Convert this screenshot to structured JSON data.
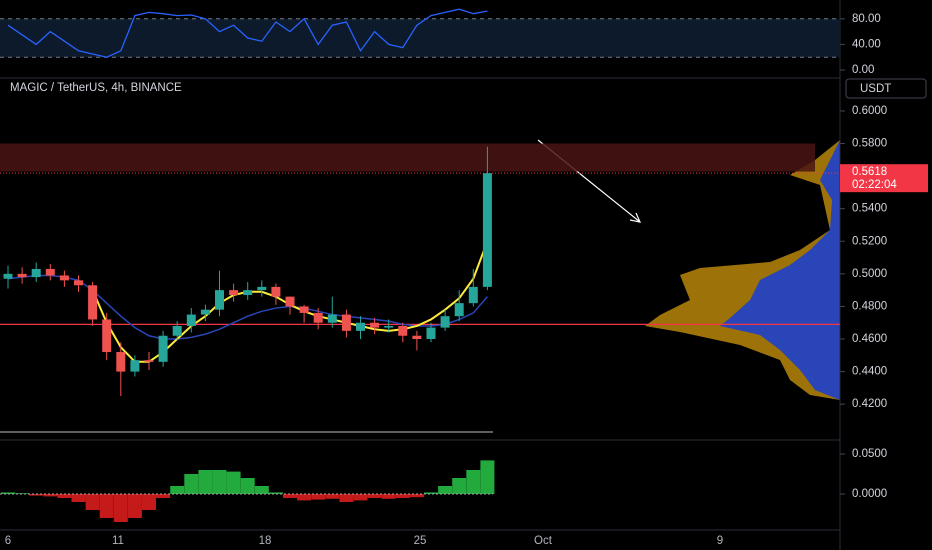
{
  "chart_data": [
    {
      "type": "candlestick",
      "title": "MAGIC / TetherUS, 4h, BINANCE",
      "unit": "USDT",
      "open": [
        0.497,
        0.5,
        0.498,
        0.503,
        0.499,
        0.496,
        0.493,
        0.472,
        0.452,
        0.44,
        0.447,
        0.446,
        0.462,
        0.468,
        0.475,
        0.478,
        0.49,
        0.487,
        0.49,
        0.492,
        0.486,
        0.48,
        0.476,
        0.47,
        0.475,
        0.465,
        0.47,
        0.467,
        0.468,
        0.462,
        0.46,
        0.467,
        0.474,
        0.482,
        0.492
      ],
      "high": [
        0.505,
        0.504,
        0.507,
        0.506,
        0.502,
        0.499,
        0.495,
        0.476,
        0.458,
        0.45,
        0.452,
        0.465,
        0.471,
        0.479,
        0.481,
        0.502,
        0.494,
        0.495,
        0.496,
        0.494,
        0.486,
        0.481,
        0.479,
        0.486,
        0.478,
        0.474,
        0.473,
        0.472,
        0.47,
        0.465,
        0.47,
        0.478,
        0.49,
        0.503,
        0.578
      ],
      "low": [
        0.491,
        0.494,
        0.495,
        0.496,
        0.492,
        0.489,
        0.468,
        0.447,
        0.425,
        0.437,
        0.441,
        0.443,
        0.459,
        0.464,
        0.471,
        0.474,
        0.483,
        0.484,
        0.486,
        0.481,
        0.475,
        0.47,
        0.466,
        0.467,
        0.461,
        0.46,
        0.463,
        0.464,
        0.458,
        0.453,
        0.458,
        0.465,
        0.471,
        0.48,
        0.49
      ],
      "close": [
        0.5,
        0.498,
        0.503,
        0.499,
        0.496,
        0.493,
        0.472,
        0.452,
        0.44,
        0.447,
        0.446,
        0.462,
        0.468,
        0.475,
        0.478,
        0.49,
        0.487,
        0.49,
        0.492,
        0.486,
        0.48,
        0.476,
        0.47,
        0.475,
        0.465,
        0.47,
        0.467,
        0.468,
        0.462,
        0.46,
        0.467,
        0.474,
        0.482,
        0.492,
        0.5618
      ],
      "series": [
        {
          "color": "#2a45b8",
          "values": [
            0.497,
            0.498,
            0.499,
            0.499,
            0.498,
            0.496,
            0.49,
            0.482,
            0.474,
            0.467,
            0.462,
            0.46,
            0.46,
            0.461,
            0.463,
            0.466,
            0.47,
            0.474,
            0.477,
            0.479,
            0.48,
            0.479,
            0.477,
            0.475,
            0.474,
            0.473,
            0.472,
            0.471,
            0.469,
            0.468,
            0.468,
            0.469,
            0.472,
            0.476,
            0.486
          ]
        },
        {
          "color": "#ffeb3b",
          "values": [
            null,
            null,
            null,
            null,
            null,
            null,
            0.49,
            0.47,
            0.455,
            0.446,
            0.446,
            0.452,
            0.46,
            0.468,
            0.474,
            0.482,
            0.487,
            0.489,
            0.489,
            0.486,
            0.481,
            0.477,
            0.474,
            0.472,
            0.47,
            0.468,
            0.466,
            0.465,
            0.466,
            0.468,
            0.472,
            0.478,
            0.485,
            0.497,
            0.52
          ]
        }
      ],
      "x_labels": [
        "6",
        "11",
        "18",
        "25",
        "Oct",
        "9"
      ],
      "ylim": [
        0.398,
        0.619
      ],
      "yticks": [
        {
          "value": 0.42,
          "label": "0.4200"
        },
        {
          "value": 0.44,
          "label": "0.4400"
        },
        {
          "value": 0.46,
          "label": "0.4600"
        },
        {
          "value": 0.48,
          "label": "0.4800"
        },
        {
          "value": 0.5,
          "label": "0.5000"
        },
        {
          "value": 0.52,
          "label": "0.5200"
        },
        {
          "value": 0.54,
          "label": "0.5400"
        },
        {
          "value": 0.58,
          "label": "0.5800"
        },
        {
          "value": 0.6,
          "label": "0.6000"
        }
      ],
      "current_price": {
        "value": 0.5618,
        "label": "0.5618"
      },
      "countdown": "02:22:04",
      "zone": [
        0.5628,
        0.58
      ],
      "level": 0.469
    },
    {
      "type": "line",
      "color": "#2962ff",
      "values": [
        70,
        55,
        40,
        60,
        45,
        30,
        25,
        20,
        30,
        85,
        90,
        88,
        85,
        86,
        80,
        60,
        70,
        50,
        45,
        75,
        60,
        80,
        40,
        70,
        75,
        30,
        60,
        40,
        35,
        70,
        85,
        90,
        95,
        88,
        92
      ],
      "band": [
        20,
        80
      ],
      "ylim": [
        -12.5,
        109.4
      ],
      "yticks": [
        {
          "value": 0,
          "label": "0.00"
        },
        {
          "value": 40,
          "label": "40.00"
        },
        {
          "value": 80,
          "label": "80.00"
        }
      ]
    },
    {
      "type": "bar",
      "values": [
        0.002,
        0.001,
        -0.002,
        -0.003,
        -0.005,
        -0.01,
        -0.02,
        -0.03,
        -0.035,
        -0.03,
        -0.02,
        -0.005,
        0.01,
        0.025,
        0.03,
        0.03,
        0.028,
        0.02,
        0.01,
        0.002,
        -0.005,
        -0.008,
        -0.007,
        -0.006,
        -0.01,
        -0.008,
        -0.005,
        -0.006,
        -0.005,
        -0.004,
        0.002,
        0.01,
        0.02,
        0.03,
        0.042
      ],
      "ylim": [
        -0.045,
        0.0675
      ],
      "yticks": [
        {
          "value": 0,
          "label": "0.0000"
        },
        {
          "value": 0.05,
          "label": "0.0500"
        }
      ]
    }
  ]
}
